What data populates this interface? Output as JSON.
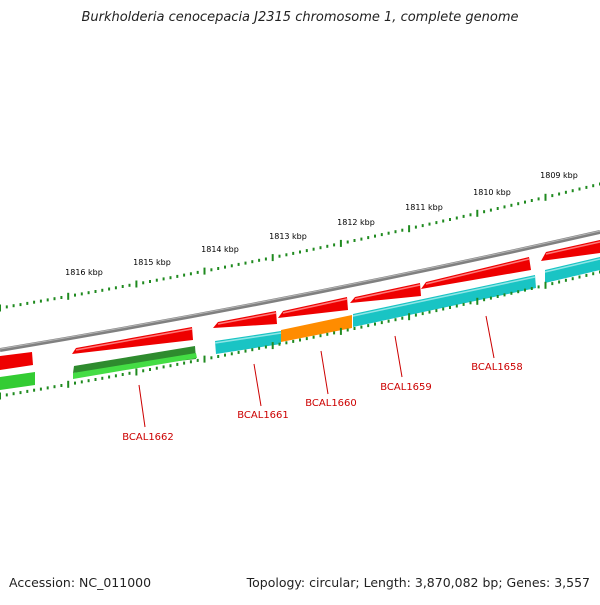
{
  "title": "Burkholderia cenocepacia J2315 chromosome 1, complete genome",
  "footer": {
    "accession": "Accession: NC_011000",
    "summary": "Topology: circular; Length: 3,870,082 bp; Genes: 3,557"
  },
  "colors": {
    "backbone": "#808080",
    "tick": "#1f8a1f",
    "red": "#ee0000",
    "green": "#33cc33",
    "dark_green": "#2e8b2e",
    "cyan": "#19c4c4",
    "orange": "#ff8c00",
    "label": "#cc0000",
    "scale_text": "#111111"
  },
  "scale_labels": [
    "1816 kbp",
    "1815 kbp",
    "1814 kbp",
    "1813 kbp",
    "1812 kbp",
    "1811 kbp",
    "1810 kbp",
    "1809 kbp"
  ],
  "gene_labels": [
    "BCAL1662",
    "BCAL1661",
    "BCAL1660",
    "BCAL1659",
    "BCAL1658"
  ]
}
